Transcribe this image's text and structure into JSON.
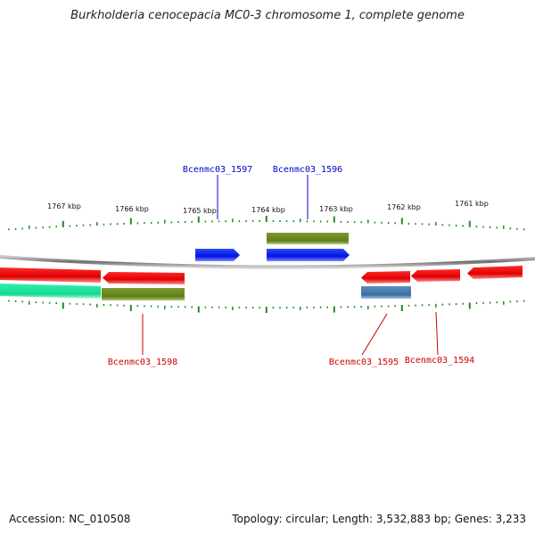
{
  "title": "Burkholderia cenocepacia MC0-3 chromosome 1, complete genome",
  "accession": "Accession: NC_010508",
  "summary": "Topology: circular; Length: 3,532,883 bp; Genes: 3,233",
  "scale_labels": [
    "1767 kbp",
    "1766 kbp",
    "1765 kbp",
    "1764 kbp",
    "1763 kbp",
    "1762 kbp",
    "1761 kbp"
  ],
  "genes": [
    {
      "label": "Bcenmc03_1597",
      "color": "#0000cc"
    },
    {
      "label": "Bcenmc03_1596",
      "color": "#0000cc"
    },
    {
      "label": "Bcenmc03_1598",
      "color": "#cc0000"
    },
    {
      "label": "Bcenmc03_1595",
      "color": "#cc0000"
    },
    {
      "label": "Bcenmc03_1594",
      "color": "#cc0000"
    }
  ],
  "colors": {
    "forward_cds": "#0022ee",
    "reverse_cds": "#ee0000",
    "gene_olive": "#6b8e23",
    "gene_steel": "#4682b4",
    "gene_aqua": "#20e8a0",
    "tick": "#1f8a1f",
    "backbone": "#8a8a8a"
  }
}
